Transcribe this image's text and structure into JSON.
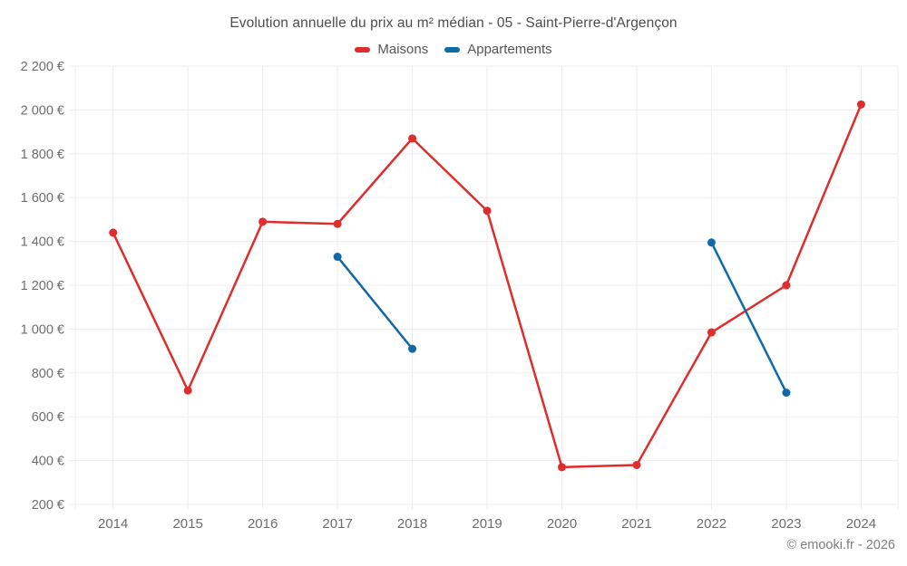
{
  "title": "Evolution annuelle du prix au m² médian - 05 - Saint-Pierre-d'Argençon",
  "footer": "© emooki.fr - 2026",
  "colors": {
    "maisons": "#e02c2a",
    "appartements": "#1269a8",
    "grid": "#ededed",
    "axis_text": "#6e6e6e",
    "title_text": "#4d4d4d"
  },
  "chart_data": {
    "type": "line",
    "title": "Evolution annuelle du prix au m² médian - 05 - Saint-Pierre-d'Argençon",
    "x": [
      2014,
      2015,
      2016,
      2017,
      2018,
      2019,
      2020,
      2021,
      2022,
      2023,
      2024
    ],
    "xticklabels": [
      "2014",
      "2015",
      "2016",
      "2017",
      "2018",
      "2019",
      "2020",
      "2021",
      "2022",
      "2023",
      "2024"
    ],
    "ylim": [
      200,
      2200
    ],
    "ytick_step": 200,
    "yticks": [
      200,
      400,
      600,
      800,
      1000,
      1200,
      1400,
      1600,
      1800,
      2000,
      2200
    ],
    "yticklabels": [
      "200 €",
      "400 €",
      "600 €",
      "800 €",
      "1 000 €",
      "1 200 €",
      "1 400 €",
      "1 600 €",
      "1 800 €",
      "2 000 €",
      "2 200 €"
    ],
    "grid": true,
    "legend_position": "top",
    "series": [
      {
        "name": "Maisons",
        "color": "#e02c2a",
        "values": [
          1440,
          720,
          1490,
          1480,
          1870,
          1540,
          370,
          380,
          985,
          1200,
          2025
        ]
      },
      {
        "name": "Appartements",
        "color": "#1269a8",
        "values": [
          null,
          null,
          null,
          1330,
          910,
          null,
          null,
          null,
          1395,
          710,
          null
        ]
      }
    ],
    "footer": "© emooki.fr - 2026"
  }
}
